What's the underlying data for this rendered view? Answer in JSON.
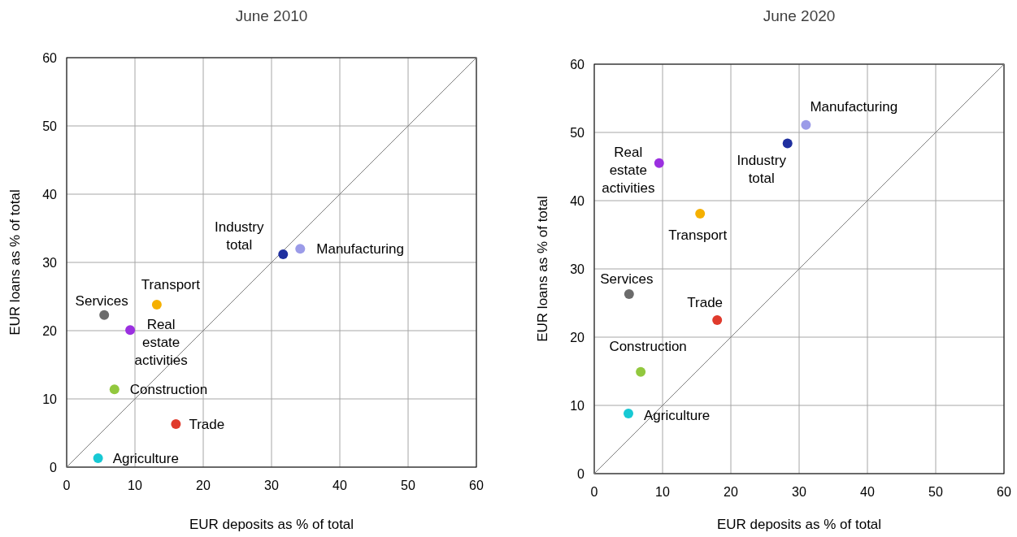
{
  "chart_data": [
    {
      "type": "scatter",
      "title": "June 2010",
      "xlabel": "EUR deposits as % of total",
      "ylabel": "EUR loans as % of total",
      "xlim": [
        0,
        60
      ],
      "ylim": [
        0,
        60
      ],
      "xticks": [
        0,
        10,
        20,
        30,
        40,
        50,
        60
      ],
      "yticks": [
        0,
        10,
        20,
        30,
        40,
        50,
        60
      ],
      "grid": true,
      "legend": false,
      "marker": "circle",
      "series": [
        {
          "type": "line",
          "marker": "none",
          "color": "#808080",
          "x": [
            0,
            60
          ],
          "values": [
            0,
            60
          ]
        },
        {
          "name": "Agriculture",
          "color": "#17c9d4",
          "x": [
            4.6
          ],
          "values": [
            1.3
          ]
        },
        {
          "name": "Trade",
          "color": "#e03a2c",
          "x": [
            16.0
          ],
          "values": [
            6.3
          ]
        },
        {
          "name": "Construction",
          "color": "#92c83e",
          "x": [
            7.0
          ],
          "values": [
            11.4
          ]
        },
        {
          "name": "Real estate activities",
          "color": "#9b30e0",
          "x": [
            9.3
          ],
          "values": [
            20.1
          ]
        },
        {
          "name": "Services",
          "color": "#6b6b6b",
          "x": [
            5.5
          ],
          "values": [
            22.3
          ]
        },
        {
          "name": "Transport",
          "color": "#f5b000",
          "x": [
            13.2
          ],
          "values": [
            23.8
          ]
        },
        {
          "name": "Industry total",
          "color": "#1f2f9f",
          "x": [
            31.7
          ],
          "values": [
            31.2
          ]
        },
        {
          "name": "Manufacturing",
          "color": "#9b9be8",
          "x": [
            34.2
          ],
          "values": [
            32.0
          ]
        }
      ]
    },
    {
      "type": "scatter",
      "title": "June 2020",
      "xlabel": "EUR deposits as % of total",
      "ylabel": "EUR loans as % of total",
      "xlim": [
        0,
        60
      ],
      "ylim": [
        0,
        60
      ],
      "xticks": [
        0,
        10,
        20,
        30,
        40,
        50,
        60
      ],
      "yticks": [
        0,
        10,
        20,
        30,
        40,
        50,
        60
      ],
      "grid": true,
      "legend": false,
      "marker": "circle",
      "series": [
        {
          "type": "line",
          "marker": "none",
          "color": "#808080",
          "x": [
            0,
            60
          ],
          "values": [
            0,
            60
          ]
        },
        {
          "name": "Agriculture",
          "color": "#17c9d4",
          "x": [
            5.0
          ],
          "values": [
            8.8
          ]
        },
        {
          "name": "Trade",
          "color": "#e03a2c",
          "x": [
            18.0
          ],
          "values": [
            22.5
          ]
        },
        {
          "name": "Construction",
          "color": "#92c83e",
          "x": [
            6.8
          ],
          "values": [
            14.9
          ]
        },
        {
          "name": "Real estate activities",
          "color": "#9b30e0",
          "x": [
            9.5
          ],
          "values": [
            45.5
          ]
        },
        {
          "name": "Services",
          "color": "#6b6b6b",
          "x": [
            5.1
          ],
          "values": [
            26.3
          ]
        },
        {
          "name": "Transport",
          "color": "#f5b000",
          "x": [
            15.5
          ],
          "values": [
            38.1
          ]
        },
        {
          "name": "Industry total",
          "color": "#1f2f9f",
          "x": [
            28.3
          ],
          "values": [
            48.4
          ]
        },
        {
          "name": "Manufacturing",
          "color": "#9b9be8",
          "x": [
            31.0
          ],
          "values": [
            51.1
          ]
        }
      ]
    }
  ]
}
